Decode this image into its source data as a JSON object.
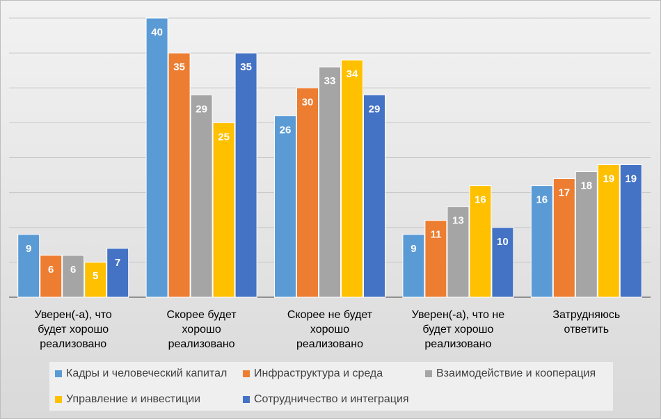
{
  "chart_data": {
    "type": "bar",
    "title": "",
    "xlabel": "",
    "ylabel": "",
    "ylim": [
      0,
      40
    ],
    "grid": true,
    "legend_position": "bottom",
    "categories": [
      "Уверен(-а), что будет хорошо реализовано",
      "Скорее будет хорошо реализовано",
      "Скорее не будет хорошо реализовано",
      "Уверен(-а), что не будет хорошо реализовано",
      "Затрудняюсь ответить"
    ],
    "category_label_lines": [
      [
        "Уверен(-а), что",
        "будет хорошо",
        "реализовано"
      ],
      [
        "Скорее будет",
        "хорошо",
        "реализовано"
      ],
      [
        "Скорее не будет",
        "хорошо",
        "реализовано"
      ],
      [
        "Уверен(-а), что не",
        "будет хорошо",
        "реализовано"
      ],
      [
        "Затрудняюсь",
        "ответить"
      ]
    ],
    "series": [
      {
        "name": "Кадры и человеческий капитал",
        "color": "#5b9bd5",
        "values": [
          9,
          40,
          26,
          9,
          16
        ]
      },
      {
        "name": "Инфраструктура и среда",
        "color": "#ed7d31",
        "values": [
          6,
          35,
          30,
          11,
          17
        ]
      },
      {
        "name": "Взаимодействие и кооперация",
        "color": "#a5a5a5",
        "values": [
          6,
          29,
          33,
          13,
          18
        ]
      },
      {
        "name": "Управление и инвестиции",
        "color": "#ffc000",
        "values": [
          5,
          25,
          34,
          16,
          19
        ]
      },
      {
        "name": "Сотрудничество и интеграция",
        "color": "#4472c4",
        "values": [
          7,
          35,
          29,
          10,
          19
        ]
      }
    ]
  }
}
